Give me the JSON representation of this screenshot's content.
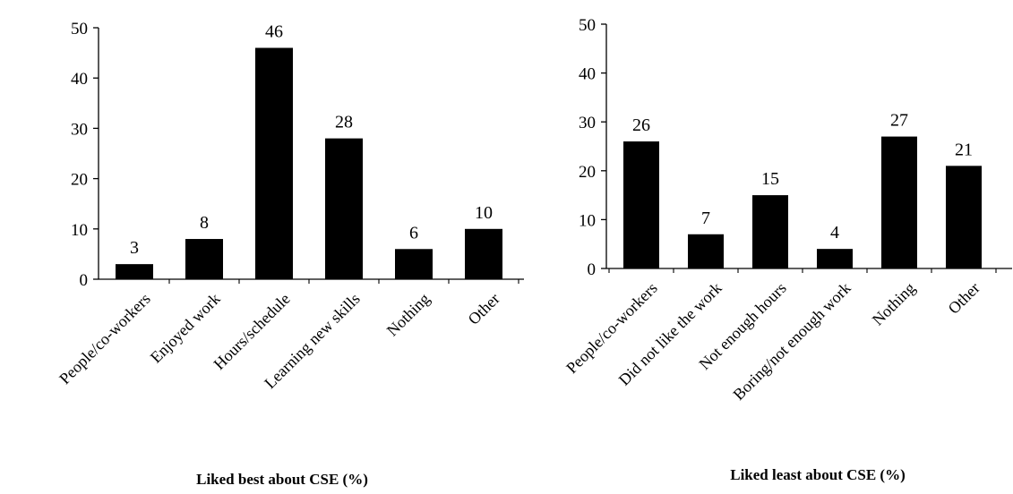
{
  "chart_data": [
    {
      "type": "bar",
      "title": "",
      "xlabel": "Liked best about CSE (%)",
      "ylabel": "",
      "ylim": [
        0,
        50
      ],
      "yticks": [
        0,
        10,
        20,
        30,
        40,
        50
      ],
      "categories": [
        "People/co-workers",
        "Enjoyed work",
        "Hours/schedule",
        "Learning new skills",
        "Nothing",
        "Other"
      ],
      "values": [
        3,
        8,
        46,
        28,
        6,
        10
      ],
      "data_labels": [
        "3",
        "8",
        "46",
        "28",
        "6",
        "10"
      ],
      "grid": false,
      "legend": "none",
      "bar_color": "#000000"
    },
    {
      "type": "bar",
      "title": "",
      "xlabel": "Liked least about CSE (%)",
      "ylabel": "",
      "ylim": [
        0,
        50
      ],
      "yticks": [
        0,
        10,
        20,
        30,
        40,
        50
      ],
      "categories": [
        "People/co-workers",
        "Did not like the work",
        "Not enough hours",
        "Boring/not enough work",
        "Nothing",
        "Other"
      ],
      "values": [
        26,
        7,
        15,
        4,
        27,
        21
      ],
      "data_labels": [
        "26",
        "7",
        "15",
        "4",
        "27",
        "21"
      ],
      "grid": false,
      "legend": "none",
      "bar_color": "#000000"
    }
  ]
}
